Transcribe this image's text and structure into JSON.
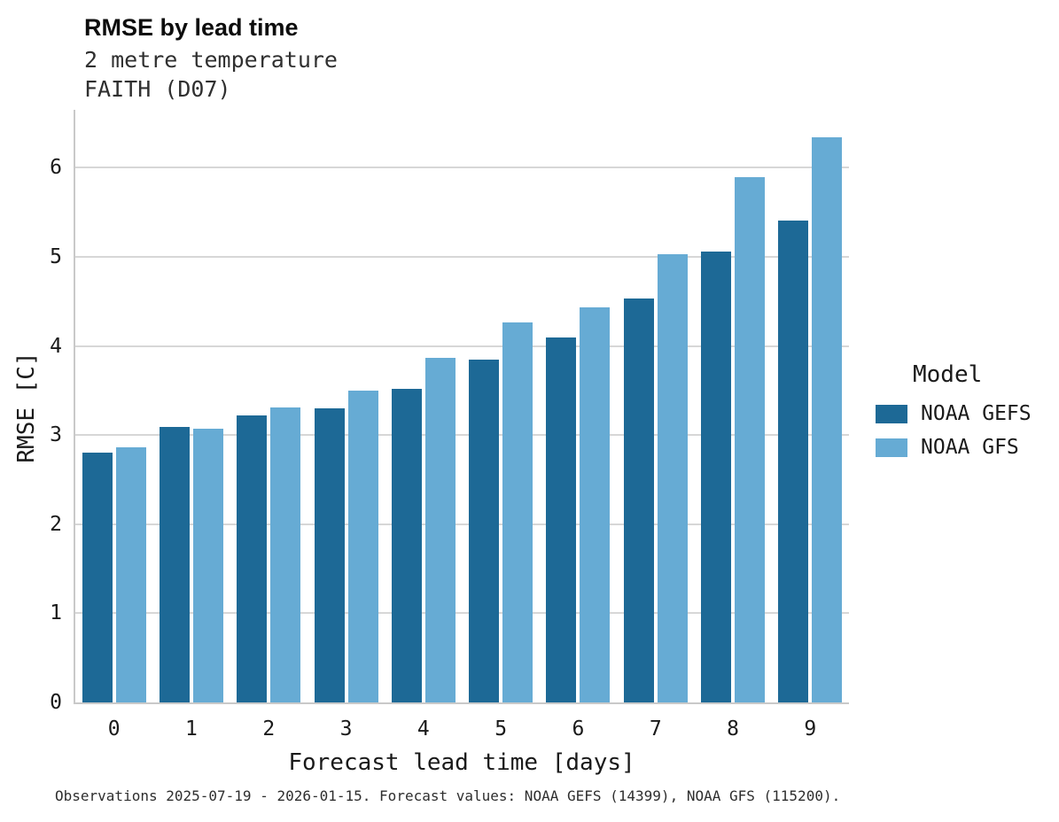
{
  "header": {
    "title": "RMSE by lead time",
    "subtitle_line1": "2 metre temperature",
    "subtitle_line2": "FAITH (D07)"
  },
  "chart_data": {
    "type": "bar",
    "categories": [
      "0",
      "1",
      "2",
      "3",
      "4",
      "5",
      "6",
      "7",
      "8",
      "9"
    ],
    "series": [
      {
        "name": "NOAA GEFS",
        "color": "#1d6996",
        "values": [
          2.8,
          3.09,
          3.22,
          3.3,
          3.52,
          3.85,
          4.1,
          4.53,
          5.06,
          5.41
        ]
      },
      {
        "name": "NOAA GFS",
        "color": "#66abd4",
        "values": [
          2.86,
          3.07,
          3.31,
          3.5,
          3.87,
          4.26,
          4.43,
          5.03,
          5.89,
          6.34
        ]
      }
    ],
    "title": "RMSE by lead time",
    "xlabel": "Forecast lead time [days]",
    "ylabel": "RMSE [C]",
    "ylim": [
      0,
      6.65
    ],
    "yticks": [
      0,
      1,
      2,
      3,
      4,
      5,
      6
    ],
    "grid": true,
    "legend_title": "Model",
    "legend_position": "right"
  },
  "footer": {
    "caption": "Observations 2025-07-19 - 2026-01-15. Forecast values: NOAA GEFS (14399), NOAA GFS (115200)."
  }
}
